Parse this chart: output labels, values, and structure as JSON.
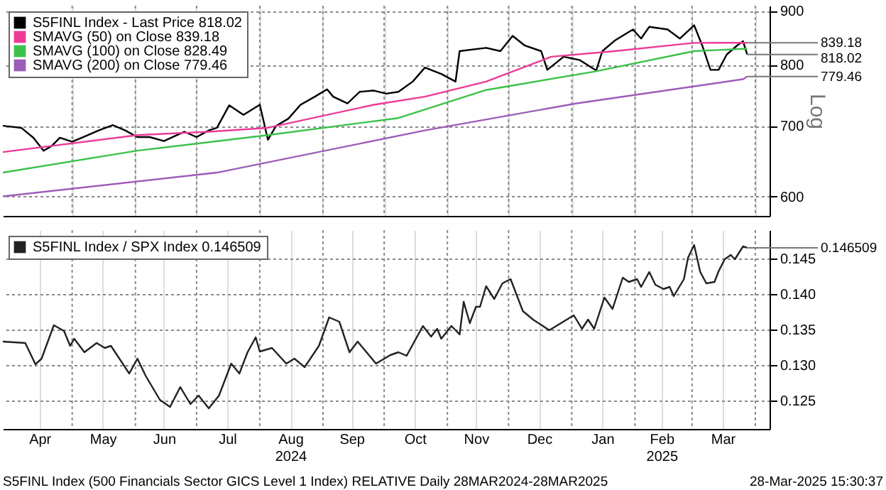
{
  "chart_data": [
    {
      "type": "line",
      "ylabel": "Log",
      "log": true,
      "grid": true,
      "legend": "top left",
      "tick_labels": "y",
      "xlim": [
        "2024-03-28",
        "2025-04-08"
      ],
      "ylim": [
        575,
        910
      ],
      "yticks": [
        600,
        700,
        800,
        900
      ],
      "xticks": [
        {
          "value": "2024-05-01",
          "label": null
        },
        {
          "value": "2024-06-01",
          "label": null
        },
        {
          "value": "2024-07-01",
          "label": null
        },
        {
          "value": "2024-08-01",
          "label": null
        },
        {
          "value": "2024-09-01",
          "label": null
        },
        {
          "value": "2024-10-01",
          "label": null
        },
        {
          "value": "2024-11-01",
          "label": null
        },
        {
          "value": "2024-12-01",
          "label": null
        },
        {
          "value": "2025-01-01",
          "label": null
        },
        {
          "value": "2025-02-01",
          "label": null
        },
        {
          "value": "2025-03-01",
          "label": null
        },
        {
          "value": "2025-04-01",
          "label": null
        }
      ],
      "series": [
        {
          "name": "S5FINL Index - Last Price 818.02",
          "color": "#000000",
          "x": [
            "2024-03-28",
            "2024-04-06",
            "2024-04-12",
            "2024-04-17",
            "2024-04-21",
            "2024-04-25",
            "2024-05-01",
            "2024-05-08",
            "2024-05-14",
            "2024-05-21",
            "2024-05-27",
            "2024-06-02",
            "2024-06-08",
            "2024-06-15",
            "2024-06-25",
            "2024-07-01",
            "2024-07-07",
            "2024-07-11",
            "2024-07-17",
            "2024-07-24",
            "2024-08-01",
            "2024-08-05",
            "2024-08-09",
            "2024-08-15",
            "2024-08-21",
            "2024-08-28",
            "2024-09-03",
            "2024-09-06",
            "2024-09-13",
            "2024-09-19",
            "2024-09-26",
            "2024-10-02",
            "2024-10-08",
            "2024-10-15",
            "2024-10-21",
            "2024-10-29",
            "2024-11-05",
            "2024-11-07",
            "2024-11-20",
            "2024-11-27",
            "2024-12-03",
            "2024-12-09",
            "2024-12-17",
            "2024-12-20",
            "2024-12-28",
            "2025-01-05",
            "2025-01-13",
            "2025-01-16",
            "2025-01-22",
            "2025-01-31",
            "2025-02-04",
            "2025-02-08",
            "2025-02-17",
            "2025-02-23",
            "2025-03-02",
            "2025-03-06",
            "2025-03-10",
            "2025-03-14",
            "2025-03-18",
            "2025-03-23",
            "2025-03-26",
            "2025-03-28"
          ],
          "values": [
            700,
            697,
            682,
            663,
            670,
            682,
            676,
            685,
            693,
            701,
            693,
            683,
            683,
            677,
            691,
            683,
            693,
            697,
            732,
            717,
            733,
            679,
            700,
            711,
            733,
            746,
            758,
            746,
            735,
            754,
            756,
            751,
            754,
            771,
            795,
            784,
            771,
            824,
            830,
            824,
            852,
            834,
            824,
            791,
            814,
            808,
            790,
            824,
            843,
            864,
            847,
            869,
            864,
            847,
            872,
            834,
            791,
            791,
            818,
            834,
            842,
            818.02
          ]
        },
        {
          "name": "SMAVG (50) on Close 839.18",
          "color": "#ec3b96",
          "x": [
            "2024-03-28",
            "2024-06-02",
            "2024-07-07",
            "2024-08-05",
            "2024-09-26",
            "2024-10-21",
            "2024-11-20",
            "2024-12-22",
            "2025-01-22",
            "2025-03-02",
            "2025-03-28"
          ],
          "values": [
            661,
            686,
            691,
            697,
            733,
            746,
            771,
            814,
            824,
            839,
            839.18
          ]
        },
        {
          "name": "SMAVG (100) on Close 828.49",
          "color": "#3cc24a",
          "x": [
            "2024-03-28",
            "2024-06-02",
            "2024-08-05",
            "2024-10-08",
            "2024-11-20",
            "2025-01-12",
            "2025-03-02",
            "2025-03-28"
          ],
          "values": [
            632,
            663,
            686,
            712,
            757,
            788,
            824,
            828.49
          ]
        },
        {
          "name": "SMAVG (200) on Close 779.46",
          "color": "#9d5cb8",
          "x": [
            "2024-03-28",
            "2024-07-11",
            "2024-10-21",
            "2025-01-03",
            "2025-03-26",
            "2025-03-28"
          ],
          "values": [
            600,
            632,
            693,
            735,
            775,
            779.46
          ]
        }
      ],
      "annotations": [
        {
          "text": "839.18",
          "x": "2025-03-28",
          "y": 839.18
        },
        {
          "text": "818.02",
          "x": "2025-03-28",
          "y": 818.02
        },
        {
          "text": "779.46",
          "x": "2025-03-28",
          "y": 779.46
        }
      ]
    },
    {
      "type": "line",
      "grid": true,
      "legend": "top left",
      "xlim": [
        "2024-03-28",
        "2025-04-08"
      ],
      "ylim": [
        0.121,
        0.149
      ],
      "yticks": [
        0.125,
        {
          "value": 0.13,
          "label": "0.130"
        },
        0.135,
        {
          "value": 0.14,
          "label": "0.140"
        },
        0.145
      ],
      "xticks": [
        {
          "value": "2024-04-15",
          "label": "Apr"
        },
        {
          "value": "2024-05-01",
          "label": null
        },
        {
          "value": "2024-05-16",
          "label": "May"
        },
        {
          "value": "2024-06-01",
          "label": null
        },
        {
          "value": "2024-06-15",
          "label": "Jun"
        },
        {
          "value": "2024-07-01",
          "label": null
        },
        {
          "value": "2024-07-16",
          "label": "Jul"
        },
        {
          "value": "2024-08-01",
          "label": null
        },
        {
          "value": "2024-08-16",
          "label": "Aug\n2024"
        },
        {
          "value": "2024-09-01",
          "label": null
        },
        {
          "value": "2024-09-15",
          "label": "Sep"
        },
        {
          "value": "2024-10-01",
          "label": null
        },
        {
          "value": "2024-10-16",
          "label": "Oct"
        },
        {
          "value": "2024-11-01",
          "label": null
        },
        {
          "value": "2024-11-15",
          "label": "Nov"
        },
        {
          "value": "2024-12-01",
          "label": null
        },
        {
          "value": "2024-12-16",
          "label": "Dec"
        },
        {
          "value": "2025-01-01",
          "label": null
        },
        {
          "value": "2025-01-16",
          "label": "Jan"
        },
        {
          "value": "2025-02-01",
          "label": null
        },
        {
          "value": "2025-02-14",
          "label": "Feb\n2025"
        },
        {
          "value": "2025-03-01",
          "label": null
        },
        {
          "value": "2025-03-16",
          "label": "Mar"
        },
        {
          "value": "2025-04-01",
          "label": null
        }
      ],
      "series": [
        {
          "name": "S5FINL Index / SPX Index 0.146509",
          "color": "#222222",
          "x": [
            "2024-03-28",
            "2024-04-08",
            "2024-04-13",
            "2024-04-16",
            "2024-04-22",
            "2024-04-27",
            "2024-04-30",
            "2024-05-02",
            "2024-05-07",
            "2024-05-13",
            "2024-05-17",
            "2024-05-20",
            "2024-05-29",
            "2024-06-02",
            "2024-06-06",
            "2024-06-13",
            "2024-06-18",
            "2024-06-23",
            "2024-06-28",
            "2024-07-02",
            "2024-07-07",
            "2024-07-12",
            "2024-07-18",
            "2024-07-22",
            "2024-07-26",
            "2024-07-30",
            "2024-08-01",
            "2024-08-07",
            "2024-08-14",
            "2024-08-18",
            "2024-08-23",
            "2024-08-30",
            "2024-09-04",
            "2024-09-09",
            "2024-09-14",
            "2024-09-18",
            "2024-09-27",
            "2024-10-04",
            "2024-10-08",
            "2024-10-12",
            "2024-10-20",
            "2024-10-24",
            "2024-10-27",
            "2024-10-29",
            "2024-11-03",
            "2024-11-07",
            "2024-11-09",
            "2024-11-12",
            "2024-11-15",
            "2024-11-17",
            "2024-11-20",
            "2024-11-24",
            "2024-11-28",
            "2024-12-02",
            "2024-12-08",
            "2024-12-13",
            "2024-12-21",
            "2024-12-25",
            "2025-01-02",
            "2025-01-06",
            "2025-01-09",
            "2025-01-12",
            "2025-01-17",
            "2025-01-21",
            "2025-01-26",
            "2025-01-29",
            "2025-02-02",
            "2025-02-04",
            "2025-02-08",
            "2025-02-11",
            "2025-02-15",
            "2025-02-18",
            "2025-02-20",
            "2025-02-25",
            "2025-02-27",
            "2025-03-02",
            "2025-03-05",
            "2025-03-08",
            "2025-03-12",
            "2025-03-14",
            "2025-03-17",
            "2025-03-20",
            "2025-03-22",
            "2025-03-26",
            "2025-03-28"
          ],
          "values": [
            0.1333,
            0.1331,
            0.1301,
            0.1309,
            0.1356,
            0.1348,
            0.1327,
            0.1337,
            0.1318,
            0.1331,
            0.1324,
            0.1327,
            0.1288,
            0.1309,
            0.1285,
            0.1251,
            0.1241,
            0.1269,
            0.1245,
            0.1257,
            0.1239,
            0.1257,
            0.1302,
            0.1288,
            0.1318,
            0.1339,
            0.1319,
            0.1324,
            0.1302,
            0.1309,
            0.1297,
            0.1327,
            0.1367,
            0.1361,
            0.1318,
            0.1333,
            0.1302,
            0.1314,
            0.1318,
            0.1313,
            0.1355,
            0.134,
            0.1351,
            0.1337,
            0.1355,
            0.1343,
            0.1389,
            0.1359,
            0.1382,
            0.1382,
            0.1411,
            0.1393,
            0.1415,
            0.1421,
            0.1376,
            0.1364,
            0.1349,
            0.1356,
            0.137,
            0.1351,
            0.1364,
            0.1351,
            0.1395,
            0.1379,
            0.1423,
            0.1417,
            0.1421,
            0.141,
            0.1431,
            0.1413,
            0.1407,
            0.141,
            0.1397,
            0.1421,
            0.1451,
            0.1469,
            0.1431,
            0.1415,
            0.1417,
            0.1432,
            0.1449,
            0.1455,
            0.1449,
            0.1467,
            0.146509
          ]
        }
      ],
      "annotations": [
        {
          "text": "0.146509",
          "x": "2025-03-28",
          "y": 0.146509
        },
        "S5FINL Index (500 Financials Sector GICS Level 1 Index) RELATIVE  Daily 28MAR2024-28MAR2025",
        "28-Mar-2025 15:30:37"
      ]
    }
  ]
}
